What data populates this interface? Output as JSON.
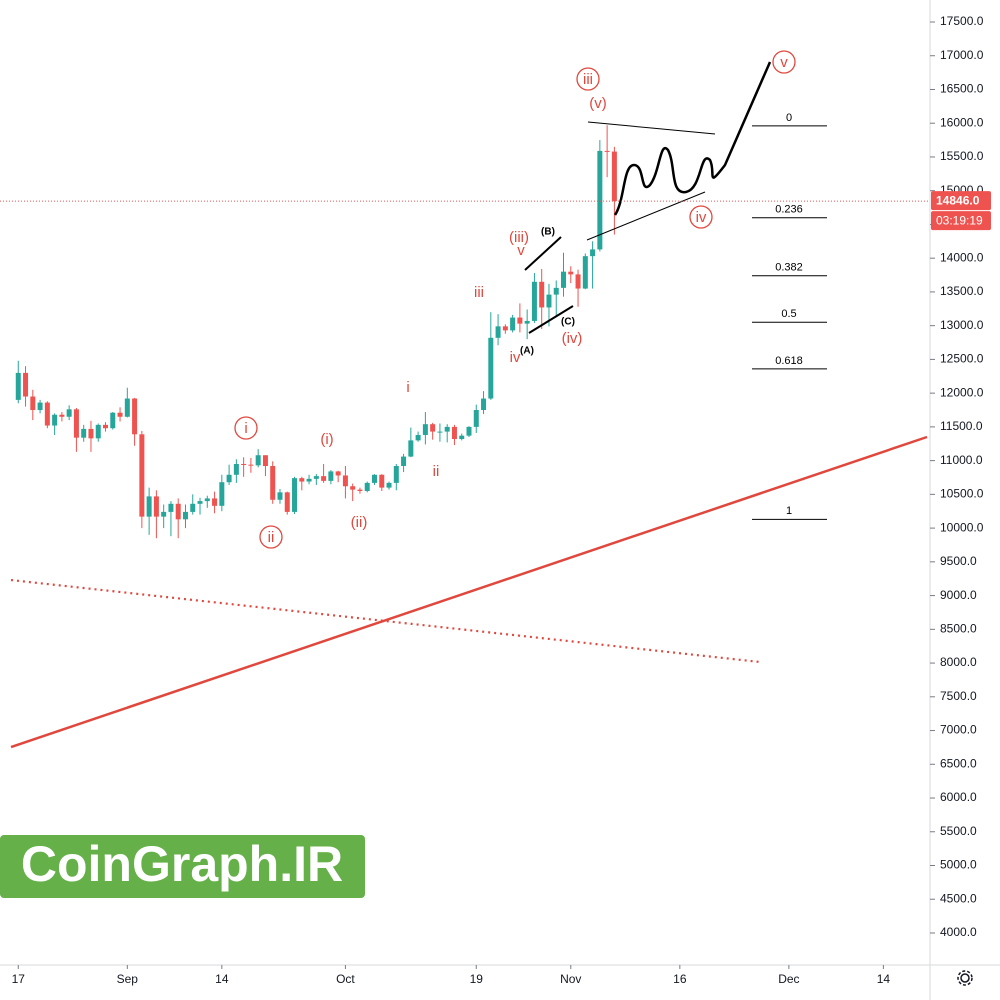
{
  "chart_data": {
    "type": "candlestick",
    "categories": [
      "Aug 17",
      "Aug 18",
      "Aug 19",
      "Aug 20",
      "Aug 21",
      "Aug 22",
      "Aug 23",
      "Aug 24",
      "Aug 25",
      "Aug 26",
      "Aug 27",
      "Aug 28",
      "Aug 29",
      "Aug 30",
      "Aug 31",
      "Sep 1",
      "Sep 2",
      "Sep 3",
      "Sep 4",
      "Sep 5",
      "Sep 6",
      "Sep 7",
      "Sep 8",
      "Sep 9",
      "Sep 10",
      "Sep 11",
      "Sep 12",
      "Sep 13",
      "Sep 14",
      "Sep 15",
      "Sep 16",
      "Sep 17",
      "Sep 18",
      "Sep 19",
      "Sep 20",
      "Sep 21",
      "Sep 22",
      "Sep 23",
      "Sep 24",
      "Sep 25",
      "Sep 26",
      "Sep 27",
      "Sep 28",
      "Sep 29",
      "Sep 30",
      "Oct 1",
      "Oct 2",
      "Oct 3",
      "Oct 4",
      "Oct 5",
      "Oct 6",
      "Oct 7",
      "Oct 8",
      "Oct 9",
      "Oct 10",
      "Oct 11",
      "Oct 12",
      "Oct 13",
      "Oct 14",
      "Oct 15",
      "Oct 16",
      "Oct 17",
      "Oct 18",
      "Oct 19",
      "Oct 20",
      "Oct 21",
      "Oct 22",
      "Oct 23",
      "Oct 24",
      "Oct 25",
      "Oct 26",
      "Oct 27",
      "Oct 28",
      "Oct 29",
      "Oct 30",
      "Oct 31",
      "Nov 1",
      "Nov 2",
      "Nov 3",
      "Nov 4",
      "Nov 5",
      "Nov 6",
      "Nov 7"
    ],
    "open": [
      11900,
      12300,
      11950,
      11750,
      11860,
      11520,
      11680,
      11650,
      11760,
      11340,
      11470,
      11330,
      11530,
      11480,
      11710,
      11650,
      11920,
      11390,
      10170,
      10470,
      10170,
      10240,
      10360,
      10130,
      10240,
      10360,
      10400,
      10440,
      10330,
      10680,
      10790,
      10950,
      10940,
      10930,
      11080,
      10920,
      10420,
      10530,
      10240,
      10740,
      10690,
      10730,
      10770,
      10700,
      10840,
      10780,
      10620,
      10570,
      10550,
      10670,
      10790,
      10600,
      10670,
      10920,
      11060,
      11300,
      11380,
      11540,
      11430,
      11430,
      11500,
      11320,
      11370,
      11500,
      11750,
      11920,
      12820,
      12990,
      12930,
      13120,
      13030,
      13070,
      13650,
      13270,
      13460,
      13560,
      13800,
      13760,
      13550,
      14030,
      14130,
      15590,
      15580
    ],
    "high": [
      12480,
      12400,
      12050,
      11900,
      11880,
      11700,
      11720,
      11820,
      11780,
      11530,
      11590,
      11550,
      11570,
      11720,
      11790,
      12080,
      11930,
      11440,
      10600,
      10560,
      10350,
      10400,
      10440,
      10350,
      10500,
      10450,
      10480,
      10540,
      10790,
      10940,
      11020,
      11050,
      11040,
      11170,
      11080,
      10990,
      10580,
      10540,
      10760,
      10760,
      10790,
      10800,
      10950,
      10860,
      10850,
      10920,
      10660,
      10600,
      10690,
      10800,
      10800,
      10690,
      10950,
      11100,
      11490,
      11430,
      11720,
      11560,
      11550,
      11540,
      11530,
      11400,
      11510,
      11830,
      12030,
      13200,
      13170,
      13020,
      13160,
      13330,
      13240,
      13780,
      13840,
      13620,
      13670,
      14080,
      13880,
      13830,
      14070,
      14250,
      15750,
      15970,
      15650
    ],
    "low": [
      11850,
      11800,
      11600,
      11700,
      11480,
      11380,
      11580,
      11600,
      11130,
      11280,
      11130,
      11280,
      11430,
      11460,
      11580,
      11640,
      11220,
      10000,
      9900,
      9850,
      10000,
      9880,
      9850,
      10000,
      10200,
      10200,
      10300,
      10220,
      10250,
      10640,
      10670,
      10760,
      10820,
      10900,
      10770,
      10360,
      10360,
      10200,
      10210,
      10560,
      10650,
      10640,
      10670,
      10650,
      10680,
      10440,
      10400,
      10510,
      10530,
      10640,
      10550,
      10570,
      10560,
      10830,
      11050,
      11280,
      11240,
      11310,
      11280,
      11270,
      11230,
      11300,
      11350,
      11410,
      11690,
      11900,
      12710,
      12880,
      12900,
      12900,
      12800,
      13040,
      12950,
      12990,
      13130,
      13430,
      13630,
      13280,
      13540,
      13550,
      14100,
      15200,
      14350
    ],
    "close": [
      12300,
      11950,
      11750,
      11860,
      11520,
      11680,
      11650,
      11760,
      11340,
      11470,
      11330,
      11530,
      11480,
      11710,
      11650,
      11920,
      11390,
      10170,
      10470,
      10170,
      10240,
      10360,
      10130,
      10240,
      10360,
      10400,
      10440,
      10330,
      10680,
      10790,
      10950,
      10940,
      10930,
      11080,
      10920,
      10420,
      10530,
      10240,
      10740,
      10690,
      10730,
      10770,
      10700,
      10840,
      10780,
      10620,
      10570,
      10550,
      10670,
      10790,
      10600,
      10670,
      10920,
      11060,
      11300,
      11380,
      11540,
      11430,
      11430,
      11500,
      11320,
      11370,
      11500,
      11750,
      11920,
      12820,
      12990,
      12930,
      13120,
      13030,
      13070,
      13650,
      13270,
      13460,
      13560,
      13800,
      13760,
      13550,
      14030,
      14130,
      15590,
      15580,
      14846
    ],
    "up_color": "#26a69a",
    "down_color": "#ef5350",
    "xlim": [
      "Aug 16",
      "Dec 20"
    ],
    "xticks": [
      {
        "value": "Aug 17",
        "label": "17"
      },
      {
        "value": "Sep 1",
        "label": "Sep"
      },
      {
        "value": "Sep 14",
        "label": "14"
      },
      {
        "value": "Oct 1",
        "label": "Oct"
      },
      {
        "value": "Oct 19",
        "label": "19"
      },
      {
        "value": "Nov 1",
        "label": "Nov"
      },
      {
        "value": "Nov 16",
        "label": "16"
      },
      {
        "value": "Dec 1",
        "label": "Dec"
      },
      {
        "value": "Dec 14",
        "label": "14"
      }
    ],
    "ylim": [
      3500,
      18000
    ],
    "yticks": [
      {
        "value": 4000,
        "label": "4000.0"
      },
      {
        "value": 4500,
        "label": "4500.0"
      },
      {
        "value": 5000,
        "label": "5000.0"
      },
      {
        "value": 5500,
        "label": "5500.0"
      },
      {
        "value": 6000,
        "label": "6000.0"
      },
      {
        "value": 6500,
        "label": "6500.0"
      },
      {
        "value": 7000,
        "label": "7000.0"
      },
      {
        "value": 7500,
        "label": "7500.0"
      },
      {
        "value": 8000,
        "label": "8000.0"
      },
      {
        "value": 8500,
        "label": "8500.0"
      },
      {
        "value": 9000,
        "label": "9000.0"
      },
      {
        "value": 9500,
        "label": "9500.0"
      },
      {
        "value": 10000,
        "label": "10000.0"
      },
      {
        "value": 10500,
        "label": "10500.0"
      },
      {
        "value": 11000,
        "label": "11000.0"
      },
      {
        "value": 11500,
        "label": "11500.0"
      },
      {
        "value": 12000,
        "label": "12000.0"
      },
      {
        "value": 12500,
        "label": "12500.0"
      },
      {
        "value": 13000,
        "label": "13000.0"
      },
      {
        "value": 13500,
        "label": "13500.0"
      },
      {
        "value": 14000,
        "label": "14000.0"
      },
      {
        "value": 14500,
        "label": "14500.0"
      },
      {
        "value": 15000,
        "label": "15000.0"
      },
      {
        "value": 15500,
        "label": "15500.0"
      },
      {
        "value": 16000,
        "label": "16000.0"
      },
      {
        "value": 16500,
        "label": "16500.0"
      },
      {
        "value": 17000,
        "label": "17000.0"
      },
      {
        "value": 17500,
        "label": "17500.0"
      }
    ],
    "last_price": {
      "value": 14846,
      "label": "14846.0"
    },
    "countdown": "03:19:19",
    "fib_levels": [
      {
        "value": 15960,
        "label": "0"
      },
      {
        "value": 14600,
        "label": "0.236"
      },
      {
        "value": 13740,
        "label": "0.382"
      },
      {
        "value": 13050,
        "label": "0.5"
      },
      {
        "value": 12360,
        "label": "0.618"
      },
      {
        "value": 10130,
        "label": "1"
      }
    ],
    "trend_lines": [
      {
        "x": [
          "Aug 16",
          "Dec 20"
        ],
        "values": [
          6756,
          11350
        ],
        "color": "#e0483e",
        "style": "solid"
      },
      {
        "x": [
          "Aug 16",
          "Nov 27"
        ],
        "values": [
          9230,
          8016
        ],
        "color": "#e0483e",
        "style": "dotted"
      }
    ],
    "wave_labels": [
      "iii",
      "v",
      "i",
      "ii",
      "iv",
      "(v)",
      "(iii)",
      "v",
      "iii",
      "i",
      "ii",
      "(i)",
      "(ii)",
      "iv",
      "(iv)",
      "(B)",
      "(A)",
      "(C)"
    ],
    "watermark": "CoinGraph.IR"
  }
}
